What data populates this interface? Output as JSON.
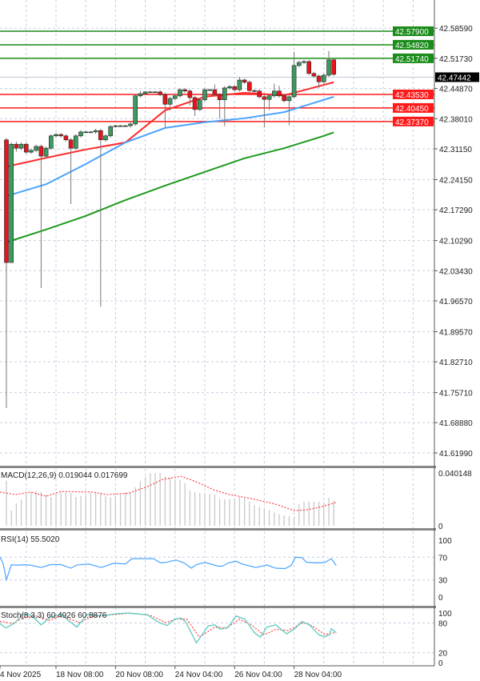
{
  "chart_data": {
    "type": "candlestick",
    "main": {
      "y_ticks": [
        "42.58590",
        "42.51730",
        "42.44870",
        "42.38010",
        "42.31150",
        "42.24150",
        "42.17290",
        "42.10290",
        "42.03430",
        "41.96570",
        "41.89570",
        "41.82710",
        "41.75710",
        "41.68880",
        "41.61990"
      ],
      "candles": {
        "open": [
          42.332,
          42.053,
          42.322,
          42.313,
          42.322,
          42.304,
          42.308,
          42.317,
          42.295,
          42.313,
          42.341,
          42.344,
          42.341,
          42.332,
          42.313,
          42.341,
          42.35,
          42.35,
          42.35,
          42.353,
          42.332,
          42.341,
          42.362,
          42.364,
          42.364,
          42.364,
          42.368,
          42.432,
          42.437,
          42.441,
          42.441,
          42.441,
          42.435,
          42.413,
          42.426,
          42.432,
          42.446,
          42.443,
          42.428,
          42.401,
          42.423,
          42.446,
          42.446,
          42.435,
          42.423,
          42.45,
          42.453,
          42.446,
          42.468,
          42.463,
          42.444,
          42.443,
          42.43,
          42.424,
          42.432,
          42.443,
          42.432,
          42.421,
          42.43,
          42.501,
          42.508,
          42.51,
          42.483,
          42.477,
          42.464,
          42.479,
          42.514
        ],
        "high": [
          42.336,
          42.326,
          42.328,
          42.326,
          42.326,
          42.312,
          42.321,
          42.321,
          42.317,
          42.345,
          42.348,
          42.348,
          42.345,
          42.336,
          42.345,
          42.354,
          42.352,
          42.352,
          42.357,
          42.357,
          42.345,
          42.366,
          42.366,
          42.366,
          42.366,
          42.372,
          42.436,
          42.443,
          42.443,
          42.443,
          42.443,
          42.445,
          42.439,
          42.43,
          42.436,
          42.45,
          42.45,
          42.447,
          42.432,
          42.427,
          42.45,
          42.448,
          42.458,
          42.439,
          42.454,
          42.457,
          42.457,
          42.475,
          42.472,
          42.467,
          42.447,
          42.447,
          42.434,
          42.436,
          42.46,
          42.455,
          42.436,
          42.434,
          42.532,
          42.512,
          42.514,
          42.514,
          42.487,
          42.481,
          42.483,
          42.534,
          42.518
        ],
        "low": [
          41.722,
          42.27,
          42.305,
          42.309,
          42.3,
          42.3,
          42.304,
          41.995,
          42.291,
          42.309,
          42.337,
          42.337,
          42.328,
          42.186,
          42.309,
          42.337,
          42.348,
          42.348,
          42.346,
          41.953,
          42.328,
          42.337,
          42.36,
          42.362,
          42.362,
          42.36,
          42.364,
          42.428,
          42.435,
          42.439,
          42.439,
          42.431,
          42.359,
          42.399,
          42.422,
          42.428,
          42.439,
          42.41,
          42.386,
          42.397,
          42.419,
          42.444,
          42.431,
          42.38,
          42.363,
          42.446,
          42.442,
          42.442,
          42.459,
          42.44,
          42.439,
          42.426,
          42.36,
          42.4,
          42.428,
          42.428,
          42.417,
          42.365,
          42.426,
          42.497,
          42.504,
          42.479,
          42.473,
          42.45,
          42.46,
          42.475,
          42.477
        ],
        "close": [
          42.053,
          42.322,
          42.313,
          42.322,
          42.304,
          42.308,
          42.317,
          42.295,
          42.313,
          42.341,
          42.344,
          42.341,
          42.332,
          42.313,
          42.341,
          42.35,
          42.35,
          42.35,
          42.353,
          42.332,
          42.341,
          42.362,
          42.364,
          42.364,
          42.364,
          42.368,
          42.432,
          42.437,
          42.441,
          42.441,
          42.441,
          42.435,
          42.413,
          42.426,
          42.432,
          42.446,
          42.443,
          42.428,
          42.401,
          42.423,
          42.446,
          42.446,
          42.435,
          42.423,
          42.45,
          42.453,
          42.446,
          42.468,
          42.463,
          42.444,
          42.443,
          42.43,
          42.424,
          42.432,
          42.443,
          42.432,
          42.421,
          42.43,
          42.501,
          42.508,
          42.51,
          42.483,
          42.477,
          42.464,
          42.479,
          42.514,
          42.481
        ]
      },
      "moving_averages": [
        {
          "color": "#ff2a2a",
          "points": [
            [
              0,
              42.271
            ],
            [
              8,
              42.291
            ],
            [
              16,
              42.31
            ],
            [
              24,
              42.326
            ],
            [
              32,
              42.399
            ],
            [
              40,
              42.43
            ],
            [
              48,
              42.439
            ],
            [
              56,
              42.433
            ],
            [
              64,
              42.457
            ],
            [
              66,
              42.463
            ]
          ]
        },
        {
          "color": "#4aa3ff",
          "points": [
            [
              0,
              42.204
            ],
            [
              8,
              42.231
            ],
            [
              16,
              42.277
            ],
            [
              24,
              42.326
            ],
            [
              32,
              42.359
            ],
            [
              40,
              42.372
            ],
            [
              48,
              42.381
            ],
            [
              56,
              42.395
            ],
            [
              64,
              42.423
            ],
            [
              66,
              42.43
            ]
          ]
        },
        {
          "color": "#1e9a1e",
          "points": [
            [
              0,
              42.099
            ],
            [
              8,
              42.128
            ],
            [
              16,
              42.159
            ],
            [
              24,
              42.195
            ],
            [
              32,
              42.228
            ],
            [
              40,
              42.259
            ],
            [
              48,
              42.29
            ],
            [
              56,
              42.313
            ],
            [
              64,
              42.341
            ],
            [
              66,
              42.349
            ]
          ]
        }
      ],
      "levels": [
        {
          "value": 42.579,
          "label": "42.57900",
          "color": "#1a8c1a"
        },
        {
          "value": 42.5482,
          "label": "42.54820",
          "color": "#1a8c1a"
        },
        {
          "value": 42.5174,
          "label": "42.51740",
          "color": "#1a8c1a"
        },
        {
          "value": 42.4353,
          "label": "42.43530",
          "color": "#ff1a1a"
        },
        {
          "value": 42.4045,
          "label": "42.40450",
          "color": "#ff1a1a"
        },
        {
          "value": 42.3737,
          "label": "42.37370",
          "color": "#ff1a1a"
        }
      ],
      "current_price": {
        "value": 42.47442,
        "label": "42.47442",
        "color": "#000000"
      },
      "colors": {
        "bull": "#3c9a5f",
        "bear": "#e8141c"
      }
    },
    "macd": {
      "title": "MACD(12,26,9) 0.019044 0.017699",
      "y_ticks": [
        {
          "label": "0.040148",
          "value": 0.040148
        },
        {
          "label": "0",
          "value": 0
        }
      ],
      "histogram": [
        0.0343,
        0.0115,
        0.017,
        0.0197,
        0.0237,
        0.0256,
        0.0261,
        0.0256,
        0.0237,
        0.0219,
        0.0243,
        0.0256,
        0.0252,
        0.0248,
        0.0219,
        0.0224,
        0.023,
        0.0248,
        0.0256,
        0.0248,
        0.0224,
        0.0215,
        0.0224,
        0.0237,
        0.0252,
        0.0256,
        0.0292,
        0.0339,
        0.037,
        0.0398,
        0.0401,
        0.0401,
        0.0376,
        0.0365,
        0.0347,
        0.0347,
        0.0325,
        0.027,
        0.0256,
        0.0248,
        0.0243,
        0.0239,
        0.0237,
        0.0206,
        0.0201,
        0.0201,
        0.0201,
        0.0219,
        0.0206,
        0.0183,
        0.0157,
        0.0142,
        0.0128,
        0.012,
        0.0102,
        0.0088,
        0.0078,
        0.0073,
        0.0069,
        0.0164,
        0.0183,
        0.0183,
        0.0183,
        0.0183,
        0.0179,
        0.0212,
        0.019
      ],
      "signal": [
        [
          -1.3,
          0.0256
        ],
        [
          1.8,
          0.0237
        ],
        [
          4.9,
          0.0256
        ],
        [
          8,
          0.0224
        ],
        [
          11,
          0.0261
        ],
        [
          17.3,
          0.0256
        ],
        [
          20.3,
          0.0237
        ],
        [
          24.7,
          0.0248
        ],
        [
          28.4,
          0.0297
        ],
        [
          31.5,
          0.0352
        ],
        [
          35.2,
          0.0376
        ],
        [
          38.3,
          0.0334
        ],
        [
          42,
          0.027
        ],
        [
          45,
          0.0237
        ],
        [
          49.4,
          0.0206
        ],
        [
          54.3,
          0.0164
        ],
        [
          58,
          0.0115
        ],
        [
          60.5,
          0.012
        ],
        [
          63.6,
          0.0146
        ],
        [
          66.5,
          0.0177
        ]
      ]
    },
    "rsi": {
      "title": "RSI(14) 55.5020",
      "y_ticks": [
        "100",
        "70",
        "30",
        "0"
      ],
      "color": "#4aa3ff",
      "values": [
        [
          -1.3,
          70
        ],
        [
          -0.7,
          60
        ],
        [
          0,
          30.4
        ],
        [
          1,
          56.7
        ],
        [
          2.1,
          56
        ],
        [
          3.6,
          56.7
        ],
        [
          4.9,
          56
        ],
        [
          7,
          51.9
        ],
        [
          8.9,
          57
        ],
        [
          11,
          57
        ],
        [
          13,
          50.7
        ],
        [
          14.2,
          56.3
        ],
        [
          16.6,
          58.1
        ],
        [
          19.1,
          51.9
        ],
        [
          21.6,
          59.3
        ],
        [
          24,
          58.1
        ],
        [
          25.3,
          67.4
        ],
        [
          29.6,
          67.4
        ],
        [
          31.1,
          60
        ],
        [
          32.1,
          60.7
        ],
        [
          34.2,
          65.2
        ],
        [
          35.8,
          60
        ],
        [
          37.3,
          50.7
        ],
        [
          38.3,
          57
        ],
        [
          40.1,
          60.7
        ],
        [
          42.6,
          54.4
        ],
        [
          43.5,
          54
        ],
        [
          44.8,
          60
        ],
        [
          46.3,
          63
        ],
        [
          47.5,
          58.1
        ],
        [
          50.3,
          51.9
        ],
        [
          52.5,
          56.3
        ],
        [
          54.3,
          50.7
        ],
        [
          56.2,
          50
        ],
        [
          57.4,
          55.6
        ],
        [
          58.3,
          70
        ],
        [
          59.6,
          69.3
        ],
        [
          60.5,
          61.1
        ],
        [
          62.4,
          60
        ],
        [
          64.2,
          60.7
        ],
        [
          65.5,
          67.4
        ],
        [
          66.5,
          55.5
        ]
      ]
    },
    "stochastic": {
      "title": "Stoch(8,3,3) 60.4926 60.8876",
      "y_ticks": [
        "100",
        "80",
        "20",
        "0"
      ],
      "main_color": "#5fc9c0",
      "signal_color": "#ff4040",
      "main": [
        [
          -1.3,
          78.6
        ],
        [
          -0.1,
          69.6
        ],
        [
          1.8,
          80.6
        ],
        [
          3.3,
          97.2
        ],
        [
          4.9,
          96.3
        ],
        [
          7,
          76.1
        ],
        [
          8.9,
          91.9
        ],
        [
          11,
          97.2
        ],
        [
          14.2,
          71.5
        ],
        [
          16.3,
          97.2
        ],
        [
          19.1,
          94
        ],
        [
          22.2,
          98.6
        ],
        [
          24.7,
          99.9
        ],
        [
          28.4,
          96.3
        ],
        [
          30.8,
          80.6
        ],
        [
          32.4,
          74.7
        ],
        [
          33.9,
          87.3
        ],
        [
          35.2,
          89.6
        ],
        [
          36.1,
          82.8
        ],
        [
          38.3,
          40
        ],
        [
          40.7,
          73.8
        ],
        [
          42,
          76.1
        ],
        [
          43.2,
          67
        ],
        [
          44.7,
          71.5
        ],
        [
          46.3,
          94
        ],
        [
          48.1,
          87.3
        ],
        [
          50,
          60.2
        ],
        [
          51.2,
          51.2
        ],
        [
          52.5,
          71.5
        ],
        [
          54.3,
          76.1
        ],
        [
          56.5,
          58
        ],
        [
          58,
          67
        ],
        [
          59.6,
          82.8
        ],
        [
          61.1,
          76.1
        ],
        [
          63,
          55.8
        ],
        [
          64.2,
          52.2
        ],
        [
          65.1,
          55.8
        ],
        [
          65.5,
          68.2
        ],
        [
          66.5,
          60.5
        ]
      ],
      "signal": [
        [
          -1.3,
          83.2
        ],
        [
          1.2,
          78.6
        ],
        [
          3.7,
          92
        ],
        [
          6.1,
          94.2
        ],
        [
          8.6,
          85.2
        ],
        [
          11,
          94.2
        ],
        [
          14.8,
          80.6
        ],
        [
          17.3,
          92.8
        ],
        [
          20.3,
          95.5
        ],
        [
          24.7,
          99.5
        ],
        [
          29,
          95.5
        ],
        [
          32.1,
          80.6
        ],
        [
          34.5,
          88.2
        ],
        [
          36.4,
          87.3
        ],
        [
          38.9,
          51.2
        ],
        [
          42,
          71.5
        ],
        [
          44.4,
          69.3
        ],
        [
          46.9,
          87.3
        ],
        [
          49.4,
          76.1
        ],
        [
          51.9,
          55.8
        ],
        [
          54.3,
          67
        ],
        [
          56.8,
          64.8
        ],
        [
          59.9,
          80.6
        ],
        [
          61.7,
          73.8
        ],
        [
          64.2,
          56.7
        ],
        [
          66.5,
          60.9
        ]
      ]
    },
    "x_ticks": [
      {
        "label": "4 Nov 2025",
        "bar": -1.3
      },
      {
        "label": "18 Nov 08:00",
        "bar": 10
      },
      {
        "label": "20 Nov 08:00",
        "bar": 22
      },
      {
        "label": "24 Nov 04:00",
        "bar": 34
      },
      {
        "label": "26 Nov 04:00",
        "bar": 46
      },
      {
        "label": "28 Nov 04:00",
        "bar": 58
      }
    ],
    "grid": true
  }
}
